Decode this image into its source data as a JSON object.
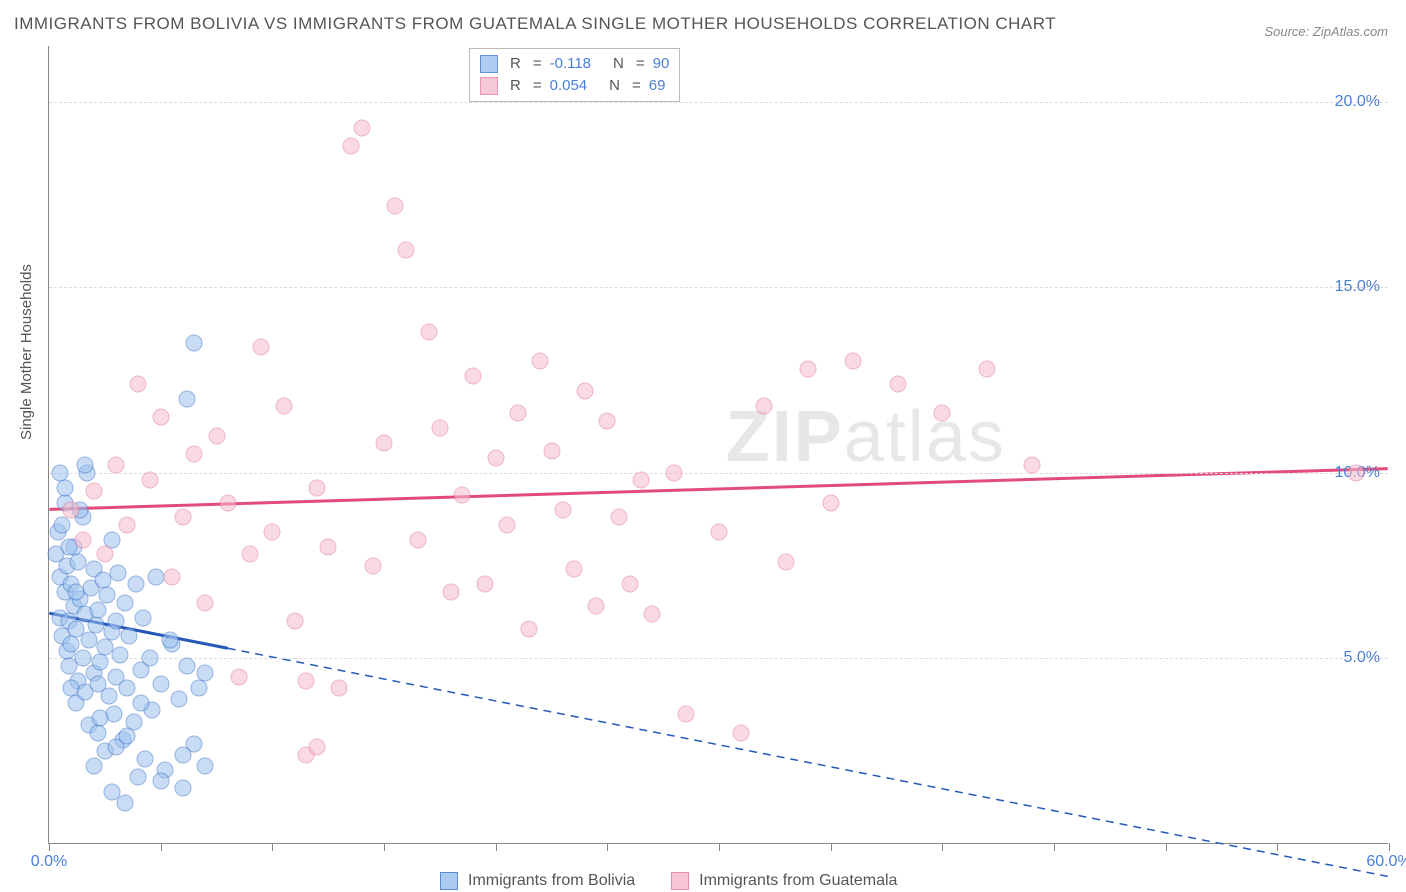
{
  "title": "IMMIGRANTS FROM BOLIVIA VS IMMIGRANTS FROM GUATEMALA SINGLE MOTHER HOUSEHOLDS CORRELATION CHART",
  "source": "Source: ZipAtlas.com",
  "ylabel": "Single Mother Households",
  "watermark_a": "ZIP",
  "watermark_b": "atlas",
  "chart": {
    "type": "scatter",
    "background_color": "#ffffff",
    "grid_color": "#dddddd",
    "axis_color": "#888888",
    "xlim": [
      0,
      60
    ],
    "ylim": [
      0,
      21.5
    ],
    "xticks": [
      0,
      5,
      10,
      15,
      20,
      25,
      30,
      35,
      40,
      45,
      50,
      55,
      60
    ],
    "xtick_labels": {
      "0": "0.0%",
      "60": "60.0%"
    },
    "yticks": [
      5,
      10,
      15,
      20
    ],
    "ytick_labels": {
      "5": "5.0%",
      "10": "10.0%",
      "15": "15.0%",
      "20": "20.0%"
    },
    "marker_size": 17,
    "marker_opacity": 0.55
  },
  "series": [
    {
      "name": "Immigrants from Bolivia",
      "fill_color": "#9cc1ee",
      "stroke_color": "#3e74c9",
      "trend_color": "#2458b8",
      "R": "-0.118",
      "N": "90",
      "trend": {
        "y_at_x0": 6.2,
        "y_at_x60": -0.9,
        "solid_until_x": 8
      },
      "points": [
        [
          0.3,
          7.8
        ],
        [
          0.4,
          8.4
        ],
        [
          0.5,
          6.1
        ],
        [
          0.5,
          7.2
        ],
        [
          0.6,
          5.6
        ],
        [
          0.6,
          8.6
        ],
        [
          0.7,
          6.8
        ],
        [
          0.7,
          9.2
        ],
        [
          0.8,
          5.2
        ],
        [
          0.8,
          7.5
        ],
        [
          0.9,
          6.0
        ],
        [
          0.9,
          4.8
        ],
        [
          1.0,
          5.4
        ],
        [
          1.0,
          7.0
        ],
        [
          1.1,
          6.4
        ],
        [
          1.1,
          8.0
        ],
        [
          1.2,
          5.8
        ],
        [
          1.2,
          3.8
        ],
        [
          1.3,
          7.6
        ],
        [
          1.3,
          4.4
        ],
        [
          1.4,
          6.6
        ],
        [
          1.5,
          5.0
        ],
        [
          1.5,
          8.8
        ],
        [
          1.6,
          4.1
        ],
        [
          1.6,
          6.2
        ],
        [
          1.7,
          10.0
        ],
        [
          1.8,
          5.5
        ],
        [
          1.8,
          3.2
        ],
        [
          1.9,
          6.9
        ],
        [
          2.0,
          4.6
        ],
        [
          2.0,
          7.4
        ],
        [
          2.1,
          5.9
        ],
        [
          2.2,
          3.0
        ],
        [
          2.2,
          6.3
        ],
        [
          2.3,
          4.9
        ],
        [
          2.4,
          7.1
        ],
        [
          2.5,
          5.3
        ],
        [
          2.5,
          2.5
        ],
        [
          2.6,
          6.7
        ],
        [
          2.7,
          4.0
        ],
        [
          2.8,
          5.7
        ],
        [
          2.8,
          8.2
        ],
        [
          2.9,
          3.5
        ],
        [
          3.0,
          6.0
        ],
        [
          3.0,
          4.5
        ],
        [
          3.1,
          7.3
        ],
        [
          3.2,
          5.1
        ],
        [
          3.3,
          2.8
        ],
        [
          3.4,
          6.5
        ],
        [
          3.5,
          4.2
        ],
        [
          3.6,
          5.6
        ],
        [
          3.8,
          3.3
        ],
        [
          3.9,
          7.0
        ],
        [
          4.0,
          1.8
        ],
        [
          4.1,
          4.7
        ],
        [
          4.2,
          6.1
        ],
        [
          4.3,
          2.3
        ],
        [
          4.5,
          5.0
        ],
        [
          4.6,
          3.6
        ],
        [
          4.8,
          7.2
        ],
        [
          5.0,
          4.3
        ],
        [
          5.2,
          2.0
        ],
        [
          5.5,
          5.4
        ],
        [
          5.8,
          3.9
        ],
        [
          6.0,
          1.5
        ],
        [
          6.2,
          4.8
        ],
        [
          6.5,
          2.7
        ],
        [
          6.5,
          13.5
        ],
        [
          3.0,
          2.6
        ],
        [
          3.5,
          2.9
        ],
        [
          2.0,
          2.1
        ],
        [
          2.3,
          3.4
        ],
        [
          1.0,
          4.2
        ],
        [
          1.2,
          6.8
        ],
        [
          0.9,
          8.0
        ],
        [
          0.7,
          9.6
        ],
        [
          1.4,
          9.0
        ],
        [
          6.0,
          2.4
        ],
        [
          6.2,
          12.0
        ],
        [
          5.4,
          5.5
        ],
        [
          6.7,
          4.2
        ],
        [
          7.0,
          2.1
        ],
        [
          7.0,
          4.6
        ],
        [
          5.0,
          1.7
        ],
        [
          4.1,
          3.8
        ],
        [
          3.4,
          1.1
        ],
        [
          2.8,
          1.4
        ],
        [
          2.2,
          4.3
        ],
        [
          1.6,
          10.2
        ],
        [
          0.5,
          10.0
        ]
      ]
    },
    {
      "name": "Immigrants from Guatemala",
      "fill_color": "#f6bccc",
      "stroke_color": "#e57a9a",
      "trend_color": "#e34b7b",
      "R": "0.054",
      "N": "69",
      "trend": {
        "y_at_x0": 9.0,
        "y_at_x60": 10.1,
        "solid_until_x": 60
      },
      "points": [
        [
          1.0,
          9.0
        ],
        [
          1.5,
          8.2
        ],
        [
          2.0,
          9.5
        ],
        [
          2.5,
          7.8
        ],
        [
          3.0,
          10.2
        ],
        [
          3.5,
          8.6
        ],
        [
          4.0,
          12.4
        ],
        [
          4.5,
          9.8
        ],
        [
          5.0,
          11.5
        ],
        [
          5.5,
          7.2
        ],
        [
          6.0,
          8.8
        ],
        [
          6.5,
          10.5
        ],
        [
          7.0,
          6.5
        ],
        [
          7.5,
          11.0
        ],
        [
          8.0,
          9.2
        ],
        [
          8.5,
          4.5
        ],
        [
          9.0,
          7.8
        ],
        [
          9.5,
          13.4
        ],
        [
          10.0,
          8.4
        ],
        [
          10.5,
          11.8
        ],
        [
          11.0,
          6.0
        ],
        [
          11.5,
          2.4
        ],
        [
          12.0,
          9.6
        ],
        [
          12.5,
          8.0
        ],
        [
          13.0,
          4.2
        ],
        [
          13.5,
          18.8
        ],
        [
          14.0,
          19.3
        ],
        [
          14.5,
          7.5
        ],
        [
          15.0,
          10.8
        ],
        [
          15.5,
          17.2
        ],
        [
          16.0,
          16.0
        ],
        [
          16.5,
          8.2
        ],
        [
          17.0,
          13.8
        ],
        [
          17.5,
          11.2
        ],
        [
          18.0,
          6.8
        ],
        [
          18.5,
          9.4
        ],
        [
          19.0,
          12.6
        ],
        [
          19.5,
          7.0
        ],
        [
          20.0,
          10.4
        ],
        [
          20.5,
          8.6
        ],
        [
          21.0,
          11.6
        ],
        [
          21.5,
          5.8
        ],
        [
          22.0,
          13.0
        ],
        [
          22.5,
          10.6
        ],
        [
          23.0,
          9.0
        ],
        [
          23.5,
          7.4
        ],
        [
          24.0,
          12.2
        ],
        [
          24.5,
          6.4
        ],
        [
          25.0,
          11.4
        ],
        [
          25.5,
          8.8
        ],
        [
          26.0,
          7.0
        ],
        [
          26.5,
          9.8
        ],
        [
          27.0,
          6.2
        ],
        [
          28.0,
          10.0
        ],
        [
          28.5,
          3.5
        ],
        [
          30.0,
          8.4
        ],
        [
          31.0,
          3.0
        ],
        [
          32.0,
          11.8
        ],
        [
          33.0,
          7.6
        ],
        [
          34.0,
          12.8
        ],
        [
          35.0,
          9.2
        ],
        [
          36.0,
          13.0
        ],
        [
          38.0,
          12.4
        ],
        [
          40.0,
          11.6
        ],
        [
          42.0,
          12.8
        ],
        [
          44.0,
          10.2
        ],
        [
          11.5,
          4.4
        ],
        [
          12.0,
          2.6
        ],
        [
          58.5,
          10.0
        ]
      ]
    }
  ],
  "stats_labels": {
    "r": "R",
    "eq": "=",
    "n": "N"
  },
  "legend": {
    "items": [
      {
        "label": "Immigrants from Bolivia"
      },
      {
        "label": "Immigrants from Guatemala"
      }
    ]
  }
}
